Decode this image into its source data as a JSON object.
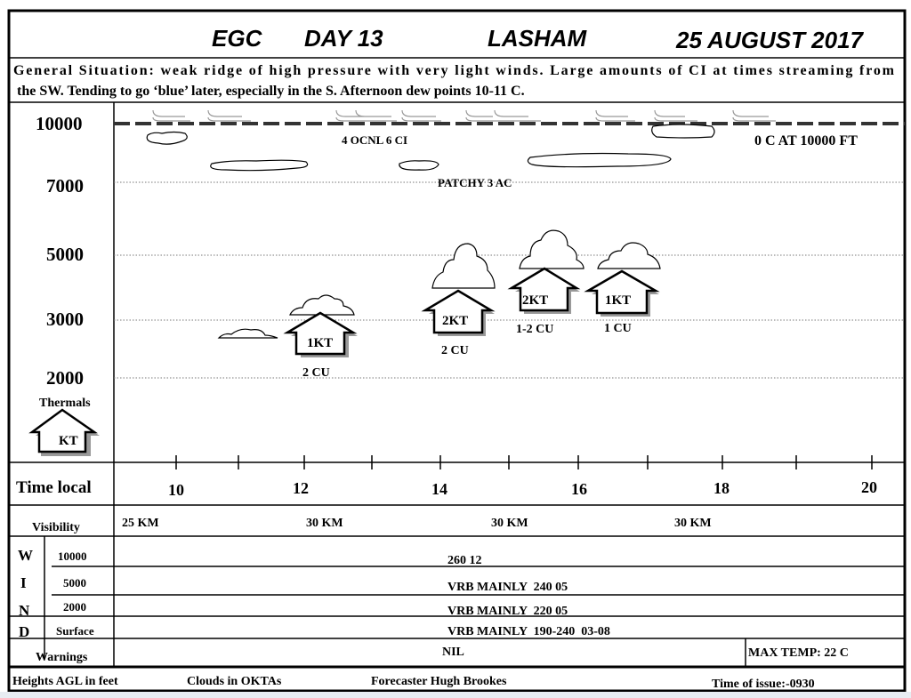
{
  "header": {
    "code": "EGC",
    "day": "DAY 13",
    "site": "LASHAM",
    "date": "25 AUGUST 2017"
  },
  "general_situation": {
    "line1": "General Situation: weak ridge of high pressure with very light winds. Large amounts of CI at times streaming from",
    "line2": "the SW. Tending to go ‘blue’ later, especially in the S. Afternoon dew points 10-11 C."
  },
  "chart": {
    "height_labels": [
      "10000",
      "7000",
      "5000",
      "3000",
      "2000"
    ],
    "freezing_level": "0 C AT 10000 FT",
    "cloud_labels": {
      "ci": "4 OCNL 6 CI",
      "ac": "PATCHY 3 AC"
    },
    "thermals_label": "Thermals",
    "thermals": [
      {
        "strength": "KT",
        "cloud": ""
      },
      {
        "strength": "1KT",
        "cloud": "2 CU"
      },
      {
        "strength": "2KT",
        "cloud": "2 CU"
      },
      {
        "strength": "2KT",
        "cloud": "1-2 CU"
      },
      {
        "strength": "1KT",
        "cloud": "1 CU"
      }
    ]
  },
  "time": {
    "label": "Time local",
    "ticks": [
      "10",
      "12",
      "14",
      "16",
      "18",
      "20"
    ]
  },
  "visibility": {
    "label": "Visibility",
    "values": [
      "25 KM",
      "30 KM",
      "30 KM",
      "30 KM"
    ]
  },
  "wind": {
    "letters": [
      "W",
      "I",
      "N",
      "D"
    ],
    "rows": [
      {
        "level": "10000",
        "value": "260 12"
      },
      {
        "level": "5000",
        "value": "VRB MAINLY  240 05"
      },
      {
        "level": "2000",
        "value": "VRB MAINLY  220 05"
      },
      {
        "level": "Surface",
        "value": "VRB MAINLY  190-240  03-08"
      }
    ]
  },
  "warnings": {
    "label": "Warnings",
    "value": "NIL",
    "max_temp": "MAX TEMP: 22 C"
  },
  "footer": {
    "heights": "Heights AGL in feet",
    "clouds": "Clouds in OKTAs",
    "forecaster": "Forecaster Hugh Brookes",
    "issue": "Time of issue:-0930"
  }
}
